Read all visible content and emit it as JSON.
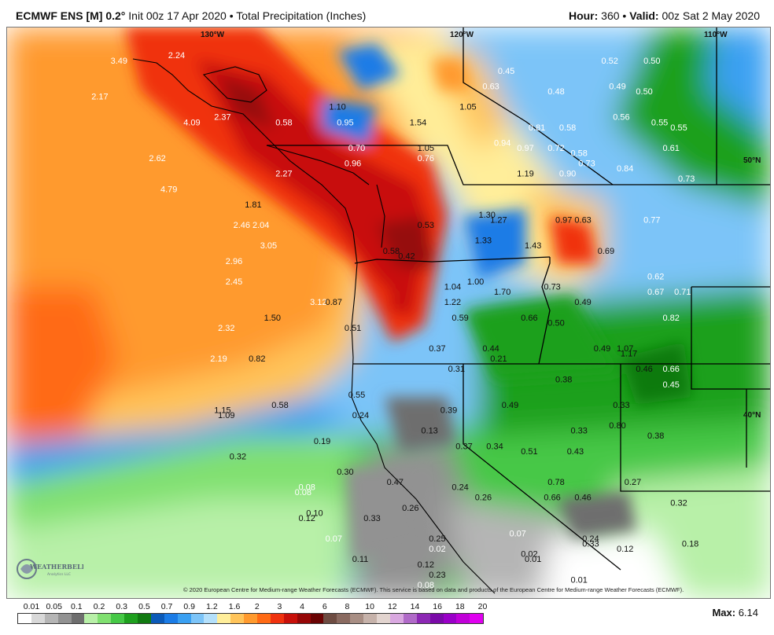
{
  "header": {
    "model": "ECMWF ENS [M] 0.2",
    "degree": "°",
    "init": "Init 00z 17 Apr 2020",
    "bullet": "•",
    "product": "Total Precipitation (Inches)",
    "hour_label": "Hour:",
    "hour_value": "360",
    "valid_label": "Valid:",
    "valid_value": "00z Sat 2 May 2020"
  },
  "map": {
    "coord_labels": [
      "130°W",
      "120°W",
      "110°W",
      "50°N",
      "40°N"
    ],
    "copyright": "© 2020 European Centre for Medium-range Weather Forecasts (ECMWF). This service is based on data and products of the European Centre for Medium-range Weather Forecasts (ECMWF).",
    "logo_text": "WEATHERBELL",
    "logo_sub": "Analytics LLC"
  },
  "chart_data": {
    "type": "heatmap",
    "title": "Total Precipitation (Inches)",
    "units": "inches",
    "max_label": "Max:",
    "max_value": "6.14",
    "legend_levels": [
      "0.01",
      "0.05",
      "0.1",
      "0.2",
      "0.3",
      "0.5",
      "0.7",
      "0.9",
      "1.2",
      "1.6",
      "2",
      "3",
      "4",
      "6",
      "8",
      "10",
      "12",
      "14",
      "16",
      "18",
      "20"
    ],
    "legend_colors": [
      "#ffffff",
      "#d8d8d8",
      "#b5b5b5",
      "#929292",
      "#6e6e6e",
      "#b8f0a8",
      "#80e070",
      "#46c846",
      "#1ea01e",
      "#117a11",
      "#0b5ab8",
      "#1b7ce6",
      "#3aa0f2",
      "#7cc4f8",
      "#b4e0fb",
      "#ffee9a",
      "#ffc45a",
      "#ff9a2e",
      "#ff6a14",
      "#f0320e",
      "#c8100a",
      "#960707",
      "#6a0303",
      "#6e4c42",
      "#8a6a60",
      "#a88e84",
      "#c6b2aa",
      "#e2d4cf",
      "#d9a8e0",
      "#b06ac8",
      "#8c28b4",
      "#7a0aa8",
      "#9a00c8",
      "#c000d8",
      "#e000f0"
    ],
    "point_values": [
      {
        "x": -130.6,
        "y": 49.6,
        "v": "3.49"
      },
      {
        "x": -129.1,
        "y": 49.7,
        "v": "2.24"
      },
      {
        "x": -131.1,
        "y": 48.9,
        "v": "2.17"
      },
      {
        "x": -128.7,
        "y": 48.4,
        "v": "4.09"
      },
      {
        "x": -127.9,
        "y": 48.5,
        "v": "2.37"
      },
      {
        "x": -126.3,
        "y": 48.4,
        "v": "0.58"
      },
      {
        "x": -124.9,
        "y": 48.7,
        "v": "1.10"
      },
      {
        "x": -124.7,
        "y": 48.4,
        "v": "0.95"
      },
      {
        "x": -122.8,
        "y": 48.4,
        "v": "1.54"
      },
      {
        "x": -121.5,
        "y": 48.7,
        "v": "1.05"
      },
      {
        "x": -122.6,
        "y": 47.9,
        "v": "1.05"
      },
      {
        "x": -122.6,
        "y": 47.7,
        "v": "0.76"
      },
      {
        "x": -124.4,
        "y": 47.9,
        "v": "0.70"
      },
      {
        "x": -124.5,
        "y": 47.6,
        "v": "0.96"
      },
      {
        "x": -120.6,
        "y": 48.0,
        "v": "0.94"
      },
      {
        "x": -119.7,
        "y": 48.3,
        "v": "0.81"
      },
      {
        "x": -120.0,
        "y": 47.9,
        "v": "0.97"
      },
      {
        "x": -118.9,
        "y": 48.3,
        "v": "0.58"
      },
      {
        "x": -119.2,
        "y": 47.9,
        "v": "0.72"
      },
      {
        "x": -118.6,
        "y": 47.8,
        "v": "0.58"
      },
      {
        "x": -118.4,
        "y": 47.6,
        "v": "0.73"
      },
      {
        "x": -117.4,
        "y": 47.5,
        "v": "0.84"
      },
      {
        "x": -118.9,
        "y": 47.4,
        "v": "0.90"
      },
      {
        "x": -120.0,
        "y": 47.4,
        "v": "1.19"
      },
      {
        "x": -120.5,
        "y": 49.4,
        "v": "0.45"
      },
      {
        "x": -120.9,
        "y": 49.1,
        "v": "0.63"
      },
      {
        "x": -119.2,
        "y": 49.0,
        "v": "0.48"
      },
      {
        "x": -117.8,
        "y": 49.6,
        "v": "0.52"
      },
      {
        "x": -116.7,
        "y": 49.6,
        "v": "0.50"
      },
      {
        "x": -117.6,
        "y": 49.1,
        "v": "0.49"
      },
      {
        "x": -116.9,
        "y": 49.0,
        "v": "0.50"
      },
      {
        "x": -117.5,
        "y": 48.5,
        "v": "0.56"
      },
      {
        "x": -116.5,
        "y": 48.4,
        "v": "0.55"
      },
      {
        "x": -116.0,
        "y": 48.3,
        "v": "0.55"
      },
      {
        "x": -116.2,
        "y": 47.9,
        "v": "0.61"
      },
      {
        "x": -115.8,
        "y": 47.3,
        "v": "0.73"
      },
      {
        "x": -129.6,
        "y": 47.7,
        "v": "2.62"
      },
      {
        "x": -129.3,
        "y": 47.1,
        "v": "4.79"
      },
      {
        "x": -126.3,
        "y": 47.4,
        "v": "2.27"
      },
      {
        "x": -127.1,
        "y": 46.8,
        "v": "1.81"
      },
      {
        "x": -127.4,
        "y": 46.4,
        "v": "2.46"
      },
      {
        "x": -126.9,
        "y": 46.4,
        "v": "2.04"
      },
      {
        "x": -126.7,
        "y": 46.0,
        "v": "3.05"
      },
      {
        "x": -127.6,
        "y": 45.7,
        "v": "2.96"
      },
      {
        "x": -127.6,
        "y": 45.3,
        "v": "2.45"
      },
      {
        "x": -125.4,
        "y": 44.9,
        "v": "3.12"
      },
      {
        "x": -125.0,
        "y": 44.9,
        "v": "0.87"
      },
      {
        "x": -126.6,
        "y": 44.6,
        "v": "1.50"
      },
      {
        "x": -127.8,
        "y": 44.4,
        "v": "2.32"
      },
      {
        "x": -124.5,
        "y": 44.4,
        "v": "0.51"
      },
      {
        "x": -128.0,
        "y": 43.8,
        "v": "2.19"
      },
      {
        "x": -127.0,
        "y": 43.8,
        "v": "0.82"
      },
      {
        "x": -122.6,
        "y": 46.4,
        "v": "0.53"
      },
      {
        "x": -123.5,
        "y": 45.9,
        "v": "0.58"
      },
      {
        "x": -123.1,
        "y": 45.8,
        "v": "0.42"
      },
      {
        "x": -121.0,
        "y": 46.6,
        "v": "1.30"
      },
      {
        "x": -120.7,
        "y": 46.5,
        "v": "1.27"
      },
      {
        "x": -121.1,
        "y": 46.1,
        "v": "1.33"
      },
      {
        "x": -119.8,
        "y": 46.0,
        "v": "1.43"
      },
      {
        "x": -119.0,
        "y": 46.5,
        "v": "0.97"
      },
      {
        "x": -118.5,
        "y": 46.5,
        "v": "0.63"
      },
      {
        "x": -116.7,
        "y": 46.5,
        "v": "0.77"
      },
      {
        "x": -121.9,
        "y": 45.2,
        "v": "1.04"
      },
      {
        "x": -121.3,
        "y": 45.3,
        "v": "1.00"
      },
      {
        "x": -120.6,
        "y": 45.1,
        "v": "1.70"
      },
      {
        "x": -121.9,
        "y": 44.9,
        "v": "1.22"
      },
      {
        "x": -121.7,
        "y": 44.6,
        "v": "0.59"
      },
      {
        "x": -119.9,
        "y": 44.6,
        "v": "0.66"
      },
      {
        "x": -119.3,
        "y": 45.2,
        "v": "0.73"
      },
      {
        "x": -117.9,
        "y": 45.9,
        "v": "0.69"
      },
      {
        "x": -116.6,
        "y": 45.4,
        "v": "0.62"
      },
      {
        "x": -116.6,
        "y": 45.1,
        "v": "0.67"
      },
      {
        "x": -115.9,
        "y": 45.1,
        "v": "0.71"
      },
      {
        "x": -118.5,
        "y": 44.9,
        "v": "0.49"
      },
      {
        "x": -119.2,
        "y": 44.5,
        "v": "0.50"
      },
      {
        "x": -116.2,
        "y": 44.6,
        "v": "0.82"
      },
      {
        "x": -122.3,
        "y": 44.0,
        "v": "0.37"
      },
      {
        "x": -120.9,
        "y": 44.0,
        "v": "0.44"
      },
      {
        "x": -120.7,
        "y": 43.8,
        "v": "0.21"
      },
      {
        "x": -121.8,
        "y": 43.6,
        "v": "0.31"
      },
      {
        "x": -118.0,
        "y": 44.0,
        "v": "0.49"
      },
      {
        "x": -117.4,
        "y": 44.0,
        "v": "1.07"
      },
      {
        "x": -117.3,
        "y": 43.9,
        "v": "1.17"
      },
      {
        "x": -119.0,
        "y": 43.4,
        "v": "0.38"
      },
      {
        "x": -116.9,
        "y": 43.6,
        "v": "0.46"
      },
      {
        "x": -116.2,
        "y": 43.6,
        "v": "0.66"
      },
      {
        "x": -116.2,
        "y": 43.3,
        "v": "0.45"
      },
      {
        "x": -127.9,
        "y": 42.8,
        "v": "1.15"
      },
      {
        "x": -127.8,
        "y": 42.7,
        "v": "1.09"
      },
      {
        "x": -126.4,
        "y": 42.9,
        "v": "0.58"
      },
      {
        "x": -124.4,
        "y": 43.1,
        "v": "0.55"
      },
      {
        "x": -124.3,
        "y": 42.7,
        "v": "0.24"
      },
      {
        "x": -122.0,
        "y": 42.8,
        "v": "0.39"
      },
      {
        "x": -122.5,
        "y": 42.4,
        "v": "0.13"
      },
      {
        "x": -120.4,
        "y": 42.9,
        "v": "0.49"
      },
      {
        "x": -117.5,
        "y": 42.9,
        "v": "0.33"
      },
      {
        "x": -118.6,
        "y": 42.4,
        "v": "0.33"
      },
      {
        "x": -117.6,
        "y": 42.5,
        "v": "0.80"
      },
      {
        "x": -116.6,
        "y": 42.3,
        "v": "0.38"
      },
      {
        "x": -125.3,
        "y": 42.2,
        "v": "0.19"
      },
      {
        "x": -121.6,
        "y": 42.1,
        "v": "0.37"
      },
      {
        "x": -120.8,
        "y": 42.1,
        "v": "0.34"
      },
      {
        "x": -119.9,
        "y": 42.0,
        "v": "0.51"
      },
      {
        "x": -118.7,
        "y": 42.0,
        "v": "0.43"
      },
      {
        "x": -127.5,
        "y": 41.9,
        "v": "0.32"
      },
      {
        "x": -124.7,
        "y": 41.6,
        "v": "0.30"
      },
      {
        "x": -123.4,
        "y": 41.4,
        "v": "0.47"
      },
      {
        "x": -119.2,
        "y": 41.4,
        "v": "0.78"
      },
      {
        "x": -117.2,
        "y": 41.4,
        "v": "0.27"
      },
      {
        "x": -125.7,
        "y": 41.3,
        "v": "0.08"
      },
      {
        "x": -125.8,
        "y": 41.2,
        "v": "0.08"
      },
      {
        "x": -121.7,
        "y": 41.3,
        "v": "0.24"
      },
      {
        "x": -121.1,
        "y": 41.1,
        "v": "0.26"
      },
      {
        "x": -119.3,
        "y": 41.1,
        "v": "0.66"
      },
      {
        "x": -118.5,
        "y": 41.1,
        "v": "0.46"
      },
      {
        "x": -116.0,
        "y": 41.0,
        "v": "0.32"
      },
      {
        "x": -125.5,
        "y": 40.8,
        "v": "0.10"
      },
      {
        "x": -125.7,
        "y": 40.7,
        "v": "0.12"
      },
      {
        "x": -123.0,
        "y": 40.9,
        "v": "0.26"
      },
      {
        "x": -124.0,
        "y": 40.7,
        "v": "0.33"
      },
      {
        "x": -122.3,
        "y": 40.3,
        "v": "0.25"
      },
      {
        "x": -120.2,
        "y": 40.4,
        "v": "0.07"
      },
      {
        "x": -118.3,
        "y": 40.3,
        "v": "0.24"
      },
      {
        "x": -118.3,
        "y": 40.2,
        "v": "0.33"
      },
      {
        "x": -117.4,
        "y": 40.1,
        "v": "0.12"
      },
      {
        "x": -115.7,
        "y": 40.2,
        "v": "0.18"
      },
      {
        "x": -125.0,
        "y": 40.3,
        "v": "0.07"
      },
      {
        "x": -122.3,
        "y": 40.1,
        "v": "0.02"
      },
      {
        "x": -119.9,
        "y": 40.0,
        "v": "0.02"
      },
      {
        "x": -119.8,
        "y": 39.9,
        "v": "0.01"
      },
      {
        "x": -124.3,
        "y": 39.9,
        "v": "0.11"
      },
      {
        "x": -122.6,
        "y": 39.8,
        "v": "0.12"
      },
      {
        "x": -122.3,
        "y": 39.6,
        "v": "0.23"
      },
      {
        "x": -118.6,
        "y": 39.5,
        "v": "0.01"
      },
      {
        "x": -122.6,
        "y": 39.4,
        "v": "0.08"
      }
    ]
  }
}
